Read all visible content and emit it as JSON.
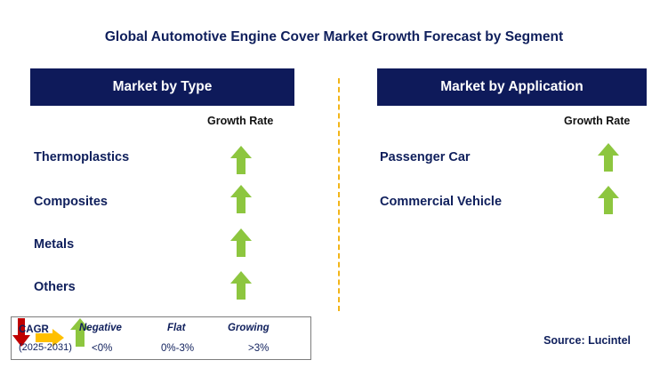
{
  "title": "Global Automotive Engine Cover Market Growth Forecast by Segment",
  "left_panel": {
    "header": "Market by Type",
    "growth_label": "Growth Rate",
    "items": [
      {
        "label": "Thermoplastics",
        "growth": "growing"
      },
      {
        "label": "Composites",
        "growth": "growing"
      },
      {
        "label": "Metals",
        "growth": "growing"
      },
      {
        "label": "Others",
        "growth": "growing"
      }
    ]
  },
  "right_panel": {
    "header": "Market by Application",
    "growth_label": "Growth Rate",
    "items": [
      {
        "label": "Passenger Car",
        "growth": "growing"
      },
      {
        "label": "Commercial Vehicle",
        "growth": "growing"
      }
    ]
  },
  "legend": {
    "cagr_label": "CAGR",
    "years": "(2025-2031)",
    "negative_label": "Negative",
    "negative_range": "<0%",
    "flat_label": "Flat",
    "flat_range": "0%-3%",
    "growing_label": "Growing",
    "growing_range": ">3%"
  },
  "source": "Source: Lucintel",
  "colors": {
    "header_bg": "#0e1a5a",
    "title_text": "#0f1f5c",
    "arrow_up": "#8dc63f",
    "arrow_down": "#c00000",
    "arrow_flat": "#ffc000",
    "divider": "#f3b519"
  }
}
